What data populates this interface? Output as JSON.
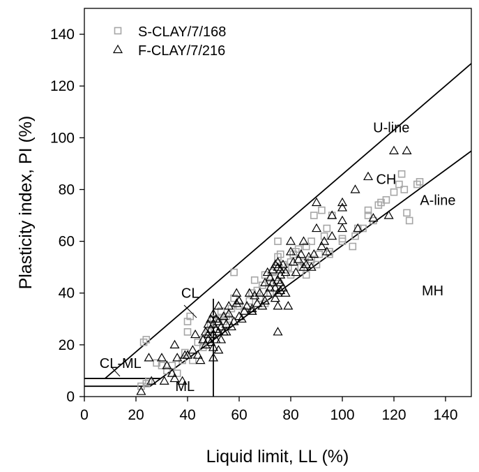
{
  "chart_data": {
    "type": "scatter",
    "xlabel": "Liquid limit, LL (%)",
    "ylabel": "Plasticity index, PI (%)",
    "xlim": [
      0,
      150
    ],
    "ylim": [
      0,
      150
    ],
    "xticks": [
      "0",
      "20",
      "40",
      "60",
      "80",
      "100",
      "120",
      "140"
    ],
    "yticks": [
      "0",
      "20",
      "40",
      "60",
      "80",
      "100",
      "120",
      "140"
    ],
    "grid": false,
    "legend_position": "top-left",
    "series": [
      {
        "name": "S-CLAY/7/168",
        "marker": "square",
        "color": "#a6a6a6",
        "points": [
          [
            23,
            21
          ],
          [
            24,
            22
          ],
          [
            22,
            4
          ],
          [
            24,
            5
          ],
          [
            25,
            6
          ],
          [
            28,
            13
          ],
          [
            30,
            12
          ],
          [
            32,
            10
          ],
          [
            34,
            12
          ],
          [
            36,
            9
          ],
          [
            38,
            14
          ],
          [
            39,
            17
          ],
          [
            40,
            29
          ],
          [
            41,
            31
          ],
          [
            40,
            25
          ],
          [
            42,
            14
          ],
          [
            44,
            21
          ],
          [
            46,
            22
          ],
          [
            48,
            25
          ],
          [
            49,
            28
          ],
          [
            50,
            30
          ],
          [
            52,
            30
          ],
          [
            53,
            33
          ],
          [
            55,
            31
          ],
          [
            56,
            30
          ],
          [
            57,
            34
          ],
          [
            58,
            48
          ],
          [
            60,
            35
          ],
          [
            62,
            33
          ],
          [
            64,
            37
          ],
          [
            65,
            40
          ],
          [
            66,
            45
          ],
          [
            68,
            38
          ],
          [
            69,
            43
          ],
          [
            70,
            36
          ],
          [
            70,
            47
          ],
          [
            72,
            44
          ],
          [
            72,
            40
          ],
          [
            74,
            46
          ],
          [
            75,
            54
          ],
          [
            75,
            60
          ],
          [
            76,
            55
          ],
          [
            77,
            51
          ],
          [
            78,
            49
          ],
          [
            79,
            50
          ],
          [
            80,
            52
          ],
          [
            80,
            47
          ],
          [
            81,
            55
          ],
          [
            82,
            56
          ],
          [
            83,
            57
          ],
          [
            84,
            50
          ],
          [
            85,
            52
          ],
          [
            86,
            58
          ],
          [
            86,
            47
          ],
          [
            88,
            53
          ],
          [
            88,
            60
          ],
          [
            89,
            70
          ],
          [
            90,
            51
          ],
          [
            91,
            55
          ],
          [
            92,
            72
          ],
          [
            93,
            62
          ],
          [
            94,
            65
          ],
          [
            95,
            56
          ],
          [
            96,
            70
          ],
          [
            100,
            61
          ],
          [
            100,
            60
          ],
          [
            104,
            58
          ],
          [
            105,
            62
          ],
          [
            106,
            65
          ],
          [
            108,
            65
          ],
          [
            110,
            72
          ],
          [
            110,
            70
          ],
          [
            112,
            68
          ],
          [
            114,
            74
          ],
          [
            115,
            75
          ],
          [
            117,
            76
          ],
          [
            120,
            79
          ],
          [
            122,
            82
          ],
          [
            123,
            86
          ],
          [
            124,
            80
          ],
          [
            125,
            71
          ],
          [
            126,
            68
          ],
          [
            129,
            82
          ],
          [
            130,
            83
          ],
          [
            95,
            55
          ],
          [
            73,
            48
          ],
          [
            67,
            41
          ],
          [
            58,
            38
          ],
          [
            54,
            29
          ],
          [
            46,
            19
          ]
        ]
      },
      {
        "name": "F-CLAY/7/216",
        "marker": "triangle",
        "color": "#000000",
        "points": [
          [
            22,
            2
          ],
          [
            25,
            15
          ],
          [
            26,
            6
          ],
          [
            30,
            15
          ],
          [
            31,
            6
          ],
          [
            32,
            12
          ],
          [
            34,
            9
          ],
          [
            35,
            7
          ],
          [
            35,
            20
          ],
          [
            36,
            15
          ],
          [
            38,
            6
          ],
          [
            39,
            16
          ],
          [
            40,
            16
          ],
          [
            42,
            18
          ],
          [
            43,
            24
          ],
          [
            44,
            16
          ],
          [
            45,
            14
          ],
          [
            46,
            22
          ],
          [
            47,
            25
          ],
          [
            47,
            20
          ],
          [
            48,
            24
          ],
          [
            48,
            28
          ],
          [
            49,
            21
          ],
          [
            49,
            26
          ],
          [
            49,
            30
          ],
          [
            50,
            24
          ],
          [
            50,
            28
          ],
          [
            50,
            32
          ],
          [
            50,
            19
          ],
          [
            50,
            15
          ],
          [
            51,
            22
          ],
          [
            51,
            26
          ],
          [
            51,
            30
          ],
          [
            52,
            18
          ],
          [
            52,
            25
          ],
          [
            52,
            29
          ],
          [
            53,
            22
          ],
          [
            53,
            27
          ],
          [
            54,
            31
          ],
          [
            55,
            25
          ],
          [
            55,
            28
          ],
          [
            56,
            32
          ],
          [
            56,
            35
          ],
          [
            57,
            27
          ],
          [
            58,
            29
          ],
          [
            59,
            36
          ],
          [
            59,
            40
          ],
          [
            60,
            31
          ],
          [
            60,
            37
          ],
          [
            61,
            30
          ],
          [
            62,
            33
          ],
          [
            63,
            35
          ],
          [
            64,
            40
          ],
          [
            65,
            34
          ],
          [
            65,
            33
          ],
          [
            66,
            39
          ],
          [
            67,
            36
          ],
          [
            68,
            40
          ],
          [
            69,
            35
          ],
          [
            70,
            37
          ],
          [
            70,
            44
          ],
          [
            71,
            40
          ],
          [
            71,
            48
          ],
          [
            72,
            42
          ],
          [
            72,
            46
          ],
          [
            73,
            49
          ],
          [
            73,
            44
          ],
          [
            74,
            38
          ],
          [
            74,
            42
          ],
          [
            75,
            40
          ],
          [
            75,
            45
          ],
          [
            75,
            50
          ],
          [
            75,
            52
          ],
          [
            75,
            35
          ],
          [
            75,
            25
          ],
          [
            76,
            41
          ],
          [
            76,
            44
          ],
          [
            76,
            47
          ],
          [
            77,
            42
          ],
          [
            77,
            51
          ],
          [
            78,
            40
          ],
          [
            78,
            48
          ],
          [
            79,
            35
          ],
          [
            80,
            60
          ],
          [
            80,
            56
          ],
          [
            81,
            52
          ],
          [
            82,
            48
          ],
          [
            83,
            53
          ],
          [
            84,
            55
          ],
          [
            85,
            50
          ],
          [
            85,
            60
          ],
          [
            86,
            51
          ],
          [
            87,
            54
          ],
          [
            88,
            50
          ],
          [
            89,
            55
          ],
          [
            90,
            65
          ],
          [
            90,
            75
          ],
          [
            92,
            58
          ],
          [
            93,
            60
          ],
          [
            94,
            56
          ],
          [
            96,
            70
          ],
          [
            96,
            62
          ],
          [
            100,
            75
          ],
          [
            100,
            73
          ],
          [
            100,
            68
          ],
          [
            100,
            65
          ],
          [
            105,
            80
          ],
          [
            106,
            65
          ],
          [
            110,
            85
          ],
          [
            112,
            69
          ],
          [
            118,
            70
          ],
          [
            120,
            95
          ],
          [
            125,
            95
          ],
          [
            60,
            37
          ],
          [
            65,
            33
          ],
          [
            52,
            35
          ],
          [
            48,
            22
          ],
          [
            54,
            25
          ],
          [
            74,
            51
          ],
          [
            76,
            49
          ]
        ]
      }
    ],
    "lines": [
      {
        "name": "U-line",
        "points": [
          [
            8,
            7
          ],
          [
            150,
            128.7
          ]
        ]
      },
      {
        "name": "A-line",
        "points": [
          [
            25.5,
            4
          ],
          [
            150,
            94.9
          ]
        ]
      },
      {
        "name": "LL=50 boundary",
        "points": [
          [
            50,
            0
          ],
          [
            50,
            37.8
          ]
        ]
      },
      {
        "name": "PI=7 boundary",
        "points": [
          [
            0,
            7
          ],
          [
            29.6,
            7
          ]
        ]
      },
      {
        "name": "PI=4 boundary",
        "points": [
          [
            0,
            4
          ],
          [
            25.5,
            4
          ]
        ]
      }
    ],
    "annotations": [
      {
        "text": "U-line",
        "x": 119,
        "y": 104
      },
      {
        "text": "CH",
        "x": 117,
        "y": 84
      },
      {
        "text": "A-line",
        "x": 137,
        "y": 76
      },
      {
        "text": "MH",
        "x": 135,
        "y": 41
      },
      {
        "text": "CL",
        "x": 41,
        "y": 40
      },
      {
        "text": "CL-ML",
        "x": 14,
        "y": 13
      },
      {
        "text": "ML",
        "x": 39,
        "y": 4
      }
    ]
  }
}
